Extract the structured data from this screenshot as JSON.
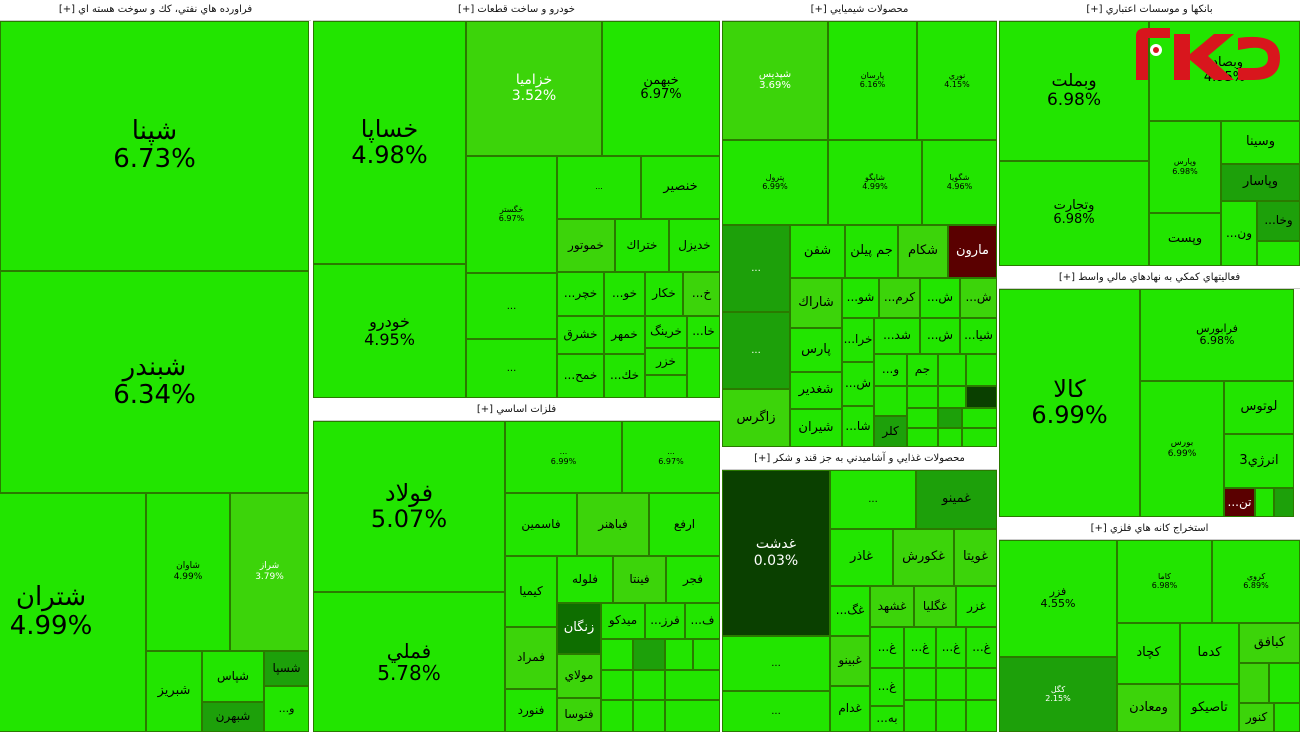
{
  "logo_text": "رکنا",
  "colors": {
    "bright": "#22e500",
    "mid": "#3cd40a",
    "dark": "#1da00a",
    "darker": "#0e6e00",
    "deepest": "#0a4000",
    "red": "#5a0000",
    "logo_red": "#d8161d"
  },
  "sectors": {
    "s1": {
      "title": "فراورده هاي نفتي، كك و سوخت هسته اي [+]"
    },
    "s2": {
      "title": "خودرو و ساخت قطعات [+]"
    },
    "s3": {
      "title": "محصولات شيميايي [+]"
    },
    "s4": {
      "title": "بانكها و موسسات اعتباري [+]"
    },
    "s5": {
      "title": "فعاليتهاي كمكي به نهادهاي مالي واسط [+]"
    },
    "s6": {
      "title": "فلزات اساسي [+]"
    },
    "s7": {
      "title": "محصولات غذايي و آشاميدني به جز قند و شكر [+]"
    },
    "s8": {
      "title": "استخراج كانه هاي فلزي [+]"
    }
  },
  "tiles": {
    "t1": {
      "name": "شپنا",
      "pct": "6.73%"
    },
    "t2": {
      "name": "شبندر",
      "pct": "6.34%"
    },
    "t3": {
      "name": "شتران",
      "pct": "4.99%"
    },
    "t4": {
      "name": "شاوان",
      "pct": "4.99%"
    },
    "t5": {
      "name": "شراز",
      "pct": "3.79%"
    },
    "t6": {
      "name": "شبريز"
    },
    "t7": {
      "name": "شپاس"
    },
    "t8": {
      "name": "شسپا"
    },
    "t9": {
      "name": "شبهرن"
    },
    "t10": {
      "name": "...و"
    },
    "t11": {
      "name": "خساپا",
      "pct": "4.98%"
    },
    "t12": {
      "name": "خودرو",
      "pct": "4.95%"
    },
    "t13": {
      "name": "خزاميا",
      "pct": "3.52%"
    },
    "t14": {
      "name": "خبهمن",
      "pct": "6.97%"
    },
    "t15": {
      "name": "خگستر",
      "pct": "6.97%"
    },
    "t16": {
      "name": "..."
    },
    "t17": {
      "name": "خنصير"
    },
    "t18": {
      "name": "خموتور"
    },
    "t19": {
      "name": "ختراك"
    },
    "t20": {
      "name": "خديزل"
    },
    "t21": {
      "name": "..."
    },
    "t22": {
      "name": "...خچر"
    },
    "t23": {
      "name": "...خو"
    },
    "t24": {
      "name": "خكار"
    },
    "t25": {
      "name": "...خ"
    },
    "t26": {
      "name": "خشرق"
    },
    "t27": {
      "name": "خمهر"
    },
    "t28": {
      "name": "خرينگ"
    },
    "t29": {
      "name": "...خا"
    },
    "t30": {
      "name": "..."
    },
    "t31": {
      "name": "...خمح"
    },
    "t32": {
      "name": "...خك"
    },
    "t33": {
      "name": "خزر"
    },
    "t34": {
      "name": "شپديس",
      "pct": "3.69%"
    },
    "t35": {
      "name": "پارسان",
      "pct": "6.16%"
    },
    "t36": {
      "name": "نوري",
      "pct": "4.15%"
    },
    "t37": {
      "name": "پترول",
      "pct": "6.99%"
    },
    "t38": {
      "name": "شاپگو",
      "pct": "4.99%"
    },
    "t39": {
      "name": "شگويا",
      "pct": "4.96%"
    },
    "t40": {
      "name": "..."
    },
    "t41": {
      "name": "شفن"
    },
    "t42": {
      "name": "جم پيلن"
    },
    "t43": {
      "name": "شكام"
    },
    "t44": {
      "name": "مارون"
    },
    "t45": {
      "name": "..."
    },
    "t46": {
      "name": "شاراك"
    },
    "t47": {
      "name": "...شو"
    },
    "t48": {
      "name": "...كرم"
    },
    "t49": {
      "name": "...ش"
    },
    "t50": {
      "name": "...ش"
    },
    "t51": {
      "name": "پارس"
    },
    "t52": {
      "name": "...خرا"
    },
    "t53": {
      "name": "...شد"
    },
    "t54": {
      "name": "...ش"
    },
    "t55": {
      "name": "...شيا"
    },
    "t56": {
      "name": "شغدير"
    },
    "t57": {
      "name": "...ش"
    },
    "t58": {
      "name": "...و"
    },
    "t59": {
      "name": "جم"
    },
    "t60": {
      "name": "زاگرس"
    },
    "t61": {
      "name": "شيران"
    },
    "t62": {
      "name": "...شا"
    },
    "t63": {
      "name": "كلر"
    },
    "t64": {
      "name": "وبملت",
      "pct": "6.98%"
    },
    "t65": {
      "name": "وبصادر",
      "pct": "4.95%"
    },
    "t66": {
      "name": "وتجارت",
      "pct": "6.98%"
    },
    "t67": {
      "name": "وپارس",
      "pct": "6.98%"
    },
    "t68": {
      "name": "وسينا"
    },
    "t69": {
      "name": "وپاسار"
    },
    "t70": {
      "name": "وپست"
    },
    "t71": {
      "name": "...ون"
    },
    "t72": {
      "name": "...وخا"
    },
    "t73": {
      "name": "كالا",
      "pct": "6.99%"
    },
    "t74": {
      "name": "فرابورس",
      "pct": "6.98%"
    },
    "t75": {
      "name": "بورس",
      "pct": "6.99%"
    },
    "t76": {
      "name": "لوتوس"
    },
    "t77": {
      "name": "انرژي3"
    },
    "t78": {
      "name": "...تن"
    },
    "t79": {
      "name": "فولاد",
      "pct": "5.07%"
    },
    "t80": {
      "name": "فملي",
      "pct": "5.78%"
    },
    "t81": {
      "name": "...",
      "pct": "6.99%"
    },
    "t82": {
      "name": "...",
      "pct": "6.97%"
    },
    "t83": {
      "name": "فاسمين"
    },
    "t84": {
      "name": "فباهنر"
    },
    "t85": {
      "name": "ارفع"
    },
    "t86": {
      "name": "كيميا"
    },
    "t87": {
      "name": "فلوله"
    },
    "t88": {
      "name": "فينتا"
    },
    "t89": {
      "name": "فجر"
    },
    "t90": {
      "name": "زنگان"
    },
    "t91": {
      "name": "ميدكو"
    },
    "t92": {
      "name": "...فرز"
    },
    "t93": {
      "name": "...ف"
    },
    "t94": {
      "name": "فمراد"
    },
    "t95": {
      "name": "مولاي"
    },
    "t96": {
      "name": "فنورد"
    },
    "t97": {
      "name": "فتوسا"
    },
    "t98": {
      "name": "غدشت",
      "pct": "0.03%"
    },
    "t99": {
      "name": "..."
    },
    "t100": {
      "name": "غمينو"
    },
    "t101": {
      "name": "غاذر"
    },
    "t102": {
      "name": "غكورش"
    },
    "t103": {
      "name": "غويتا"
    },
    "t104": {
      "name": "...غگ"
    },
    "t105": {
      "name": "غشهد"
    },
    "t106": {
      "name": "غگليا"
    },
    "t107": {
      "name": "غزر"
    },
    "t108": {
      "name": "..."
    },
    "t109": {
      "name": "غبينو"
    },
    "t110": {
      "name": "...غ"
    },
    "t111": {
      "name": "...غ"
    },
    "t112": {
      "name": "...غ"
    },
    "t113": {
      "name": "...غ"
    },
    "t114": {
      "name": "...غ"
    },
    "t115": {
      "name": "..."
    },
    "t116": {
      "name": "غدام"
    },
    "t117": {
      "name": "...به"
    },
    "t118": {
      "name": "فزر",
      "pct": "4.55%"
    },
    "t119": {
      "name": "كاما",
      "pct": "6.98%"
    },
    "t120": {
      "name": "كروي",
      "pct": "6.89%"
    },
    "t121": {
      "name": "كچاد"
    },
    "t122": {
      "name": "كدما"
    },
    "t123": {
      "name": "كبافق"
    },
    "t124": {
      "name": "كگل",
      "pct": "2.15%"
    },
    "t125": {
      "name": "ومعادن"
    },
    "t126": {
      "name": "تاصيكو"
    },
    "t127": {
      "name": "كنور"
    }
  }
}
